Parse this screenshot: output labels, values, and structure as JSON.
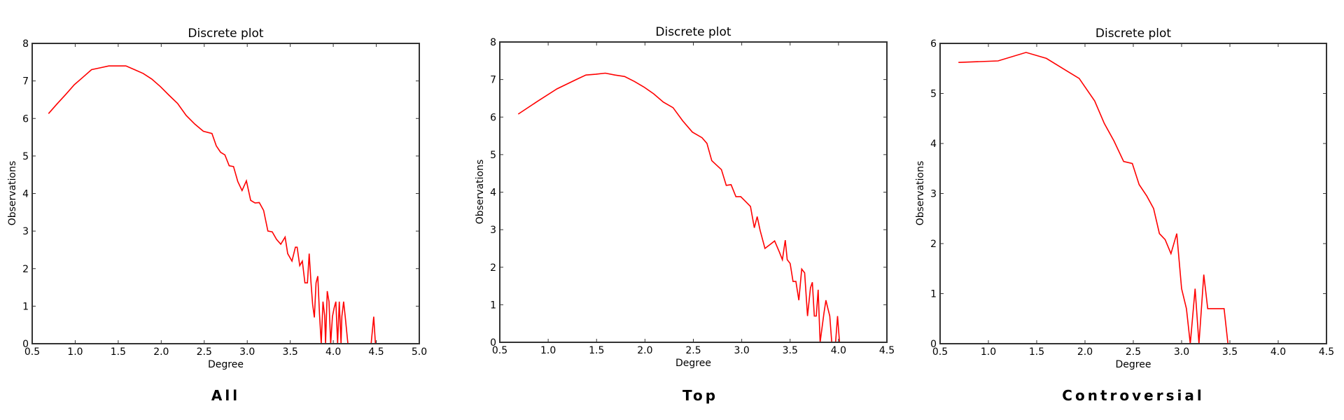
{
  "figure": {
    "captions": [
      "All",
      "Top",
      "Controversial"
    ]
  },
  "chart_data": [
    {
      "type": "line",
      "title": "Discrete plot",
      "xlabel": "Degree",
      "ylabel": "Observations",
      "caption": "All",
      "xlim": [
        0.5,
        5.0
      ],
      "ylim": [
        0,
        8
      ],
      "xticks": [
        "0.5",
        "1.0",
        "1.5",
        "2.0",
        "2.5",
        "3.0",
        "3.5",
        "4.0",
        "4.5",
        "5.0"
      ],
      "yticks": [
        "0",
        "1",
        "2",
        "3",
        "4",
        "5",
        "6",
        "7",
        "8"
      ],
      "grid": false,
      "line_color": "#ff0000",
      "x": [
        0.69,
        0.79,
        0.89,
        0.99,
        1.09,
        1.19,
        1.29,
        1.39,
        1.49,
        1.59,
        1.69,
        1.79,
        1.89,
        1.99,
        2.09,
        2.19,
        2.29,
        2.39,
        2.49,
        2.59,
        2.64,
        2.69,
        2.74,
        2.79,
        2.84,
        2.89,
        2.94,
        2.99,
        3.04,
        3.09,
        3.14,
        3.19,
        3.24,
        3.29,
        3.34,
        3.39,
        3.44,
        3.47,
        3.52,
        3.56,
        3.58,
        3.61,
        3.64,
        3.67,
        3.7,
        3.72,
        3.74,
        3.76,
        3.78,
        3.8,
        3.82,
        3.84,
        3.86,
        3.88,
        3.9,
        3.91,
        3.93,
        3.95,
        3.97,
        3.99,
        4.01,
        4.03,
        4.05,
        4.07,
        4.09,
        4.1,
        4.12,
        4.14,
        4.17,
        4.19,
        4.23,
        4.27,
        4.31,
        4.44,
        4.47,
        4.49,
        4.52,
        4.6,
        4.8,
        5.0
      ],
      "y": [
        6.13,
        6.39,
        6.64,
        6.9,
        7.1,
        7.3,
        7.35,
        7.4,
        7.4,
        7.4,
        7.3,
        7.2,
        7.05,
        6.85,
        6.62,
        6.4,
        6.08,
        5.85,
        5.66,
        5.6,
        5.27,
        5.1,
        5.03,
        4.74,
        4.72,
        4.32,
        4.08,
        4.34,
        3.82,
        3.75,
        3.76,
        3.55,
        3.0,
        2.98,
        2.78,
        2.65,
        2.84,
        2.4,
        2.2,
        2.57,
        2.57,
        2.08,
        2.2,
        1.62,
        1.62,
        2.4,
        1.65,
        1.05,
        0.7,
        1.62,
        1.8,
        0.8,
        0.0,
        1.12,
        0.75,
        0.0,
        1.4,
        1.12,
        0.0,
        0.72,
        0.95,
        1.12,
        0.0,
        1.12,
        0.0,
        0.73,
        1.12,
        0.7,
        0.0,
        0.0,
        0.0,
        0.0,
        0.0,
        0.0,
        0.72,
        0.0,
        0.0,
        0.0,
        0.0,
        0.0
      ]
    },
    {
      "type": "line",
      "title": "Discrete plot",
      "xlabel": "Degree",
      "ylabel": "Observations",
      "caption": "Top",
      "xlim": [
        0.5,
        4.5
      ],
      "ylim": [
        0,
        8
      ],
      "xticks": [
        "0.5",
        "1.0",
        "1.5",
        "2.0",
        "2.5",
        "3.0",
        "3.5",
        "4.0",
        "4.5"
      ],
      "yticks": [
        "0",
        "1",
        "2",
        "3",
        "4",
        "5",
        "6",
        "7",
        "8"
      ],
      "grid": false,
      "line_color": "#ff0000",
      "x": [
        0.69,
        0.89,
        1.09,
        1.29,
        1.39,
        1.49,
        1.59,
        1.69,
        1.79,
        1.89,
        1.99,
        2.09,
        2.19,
        2.29,
        2.39,
        2.49,
        2.59,
        2.64,
        2.69,
        2.74,
        2.79,
        2.84,
        2.89,
        2.94,
        2.99,
        3.04,
        3.09,
        3.13,
        3.16,
        3.19,
        3.24,
        3.29,
        3.34,
        3.39,
        3.42,
        3.45,
        3.47,
        3.5,
        3.53,
        3.56,
        3.59,
        3.62,
        3.65,
        3.68,
        3.71,
        3.73,
        3.75,
        3.77,
        3.79,
        3.81,
        3.83,
        3.85,
        3.87,
        3.89,
        3.91,
        3.93,
        3.95,
        3.97,
        3.99,
        4.01,
        4.03,
        4.39
      ],
      "y": [
        6.08,
        6.42,
        6.75,
        7.0,
        7.12,
        7.14,
        7.17,
        7.12,
        7.08,
        6.95,
        6.8,
        6.62,
        6.4,
        6.25,
        5.9,
        5.6,
        5.45,
        5.3,
        4.84,
        4.72,
        4.6,
        4.18,
        4.2,
        3.88,
        3.88,
        3.75,
        3.62,
        3.05,
        3.35,
        2.98,
        2.5,
        2.6,
        2.7,
        2.4,
        2.2,
        2.72,
        2.2,
        2.1,
        1.62,
        1.62,
        1.12,
        1.95,
        1.85,
        0.7,
        1.45,
        1.6,
        0.7,
        0.7,
        1.4,
        0.0,
        0.4,
        0.78,
        1.12,
        0.9,
        0.7,
        0.0,
        0.0,
        0.0,
        0.7,
        0.0,
        0.0,
        0.0
      ]
    },
    {
      "type": "line",
      "title": "Discrete plot",
      "xlabel": "Degree",
      "ylabel": "Observations",
      "caption": "Controversial",
      "xlim": [
        0.5,
        4.5
      ],
      "ylim": [
        0,
        6
      ],
      "xticks": [
        "0.5",
        "1.0",
        "1.5",
        "2.0",
        "2.5",
        "3.0",
        "3.5",
        "4.0",
        "4.5"
      ],
      "yticks": [
        "0",
        "1",
        "2",
        "3",
        "4",
        "5",
        "6"
      ],
      "grid": false,
      "line_color": "#ff0000",
      "x": [
        0.69,
        1.1,
        1.39,
        1.6,
        1.94,
        2.1,
        2.2,
        2.3,
        2.4,
        2.49,
        2.56,
        2.64,
        2.71,
        2.77,
        2.83,
        2.89,
        2.95,
        3.0,
        3.05,
        3.09,
        3.14,
        3.18,
        3.23,
        3.27,
        3.44,
        3.48,
        4.06
      ],
      "y": [
        5.62,
        5.65,
        5.82,
        5.7,
        5.3,
        4.85,
        4.4,
        4.05,
        3.64,
        3.6,
        3.18,
        2.95,
        2.7,
        2.2,
        2.08,
        1.8,
        2.2,
        1.1,
        0.7,
        0.0,
        1.1,
        0.0,
        1.38,
        0.7,
        0.7,
        0.0,
        0.0
      ]
    }
  ]
}
